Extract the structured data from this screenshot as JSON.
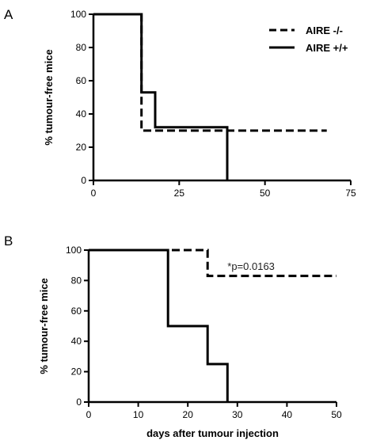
{
  "chart_data": [
    {
      "type": "line",
      "step": true,
      "panel_label": "A",
      "ylabel": "% tumour-free mice",
      "xlabel": "",
      "xlim": [
        0,
        75
      ],
      "ylim": [
        0,
        100
      ],
      "xticks": [
        0,
        25,
        50,
        75
      ],
      "yticks": [
        0,
        20,
        40,
        60,
        80,
        100
      ],
      "legend": {
        "placement": "top-right",
        "entries": [
          {
            "name": "AIRE -/-",
            "style": "dashed"
          },
          {
            "name": "AIRE +/+",
            "style": "solid"
          }
        ]
      },
      "series": [
        {
          "name": "AIRE -/-",
          "style": "dashed",
          "color": "#000000",
          "points": [
            [
              0,
              100
            ],
            [
              14,
              100
            ],
            [
              14,
              30
            ],
            [
              68,
              30
            ]
          ]
        },
        {
          "name": "AIRE +/+",
          "style": "solid",
          "color": "#000000",
          "points": [
            [
              0,
              100
            ],
            [
              14,
              100
            ],
            [
              14,
              53
            ],
            [
              18,
              53
            ],
            [
              18,
              32
            ],
            [
              39,
              32
            ],
            [
              39,
              0
            ]
          ]
        }
      ],
      "annotations": []
    },
    {
      "type": "line",
      "step": true,
      "panel_label": "B",
      "ylabel": "% tumour-free mice",
      "xlabel": "days after tumour injection",
      "xlim": [
        0,
        50
      ],
      "ylim": [
        0,
        100
      ],
      "xticks": [
        0,
        10,
        20,
        30,
        40,
        50
      ],
      "yticks": [
        0,
        20,
        40,
        60,
        80,
        100
      ],
      "legend": null,
      "series": [
        {
          "name": "AIRE -/-",
          "style": "dashed",
          "color": "#000000",
          "points": [
            [
              0,
              100
            ],
            [
              24,
              100
            ],
            [
              24,
              83
            ],
            [
              50,
              83
            ]
          ]
        },
        {
          "name": "AIRE +/+",
          "style": "solid",
          "color": "#000000",
          "points": [
            [
              0,
              100
            ],
            [
              16,
              100
            ],
            [
              16,
              50
            ],
            [
              24,
              50
            ],
            [
              24,
              25
            ],
            [
              28,
              25
            ],
            [
              28,
              0
            ]
          ]
        }
      ],
      "annotations": [
        {
          "text": "*p=0.0163",
          "x": 28,
          "y": 87
        }
      ]
    }
  ]
}
